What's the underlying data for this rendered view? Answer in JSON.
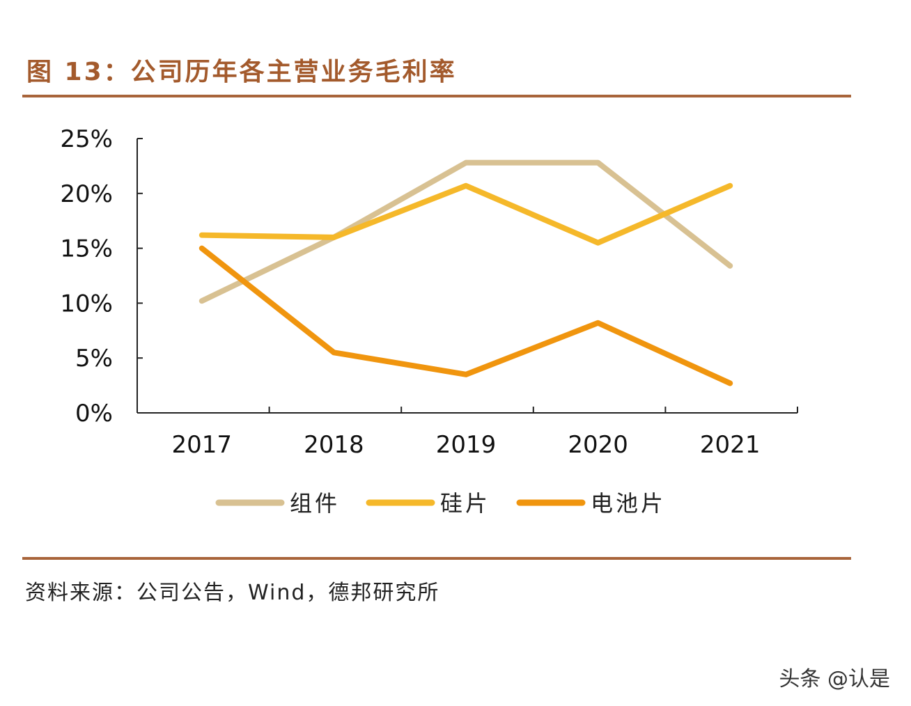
{
  "chart_data": {
    "type": "line",
    "title": "图 13：公司历年各主营业务毛利率",
    "categories": [
      "2017",
      "2018",
      "2019",
      "2020",
      "2021"
    ],
    "ylim": [
      0,
      25
    ],
    "yticks": [
      "0%",
      "5%",
      "10%",
      "15%",
      "20%",
      "25%"
    ],
    "ytick_values": [
      0,
      5,
      10,
      15,
      20,
      25
    ],
    "grid": false,
    "legend_position": "bottom",
    "series": [
      {
        "name": "组件",
        "color": "#d8c192",
        "values": [
          10.2,
          16.0,
          22.8,
          22.8,
          13.4
        ]
      },
      {
        "name": "硅片",
        "color": "#f5b82a",
        "values": [
          16.2,
          16.0,
          20.7,
          15.5,
          20.7
        ]
      },
      {
        "name": "电池片",
        "color": "#f0950e",
        "values": [
          15.0,
          5.5,
          3.5,
          8.2,
          2.7
        ]
      }
    ]
  },
  "source": "资料来源：公司公告，Wind，德邦研究所",
  "watermark": "头条 @认是"
}
